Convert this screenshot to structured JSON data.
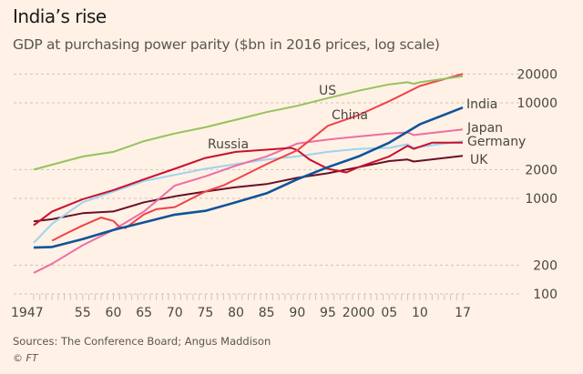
{
  "chart_data": {
    "type": "line",
    "title": "India’s rise",
    "subtitle": "GDP at purchasing power parity ($bn in 2016 prices, log scale)",
    "y_scale": "log",
    "ylim": [
      100,
      20000
    ],
    "y_ticks": [
      100,
      200,
      1000,
      2000,
      10000,
      20000
    ],
    "y_tick_labels": [
      "100",
      "200",
      "1000",
      "2000",
      "10000",
      "20000"
    ],
    "xlim": [
      1947,
      2017
    ],
    "x_ticks": [
      1947,
      1955,
      1960,
      1965,
      1970,
      1975,
      1980,
      1985,
      1990,
      1995,
      2000,
      2005,
      2010,
      2017
    ],
    "x_tick_labels": [
      "1947",
      "55",
      "60",
      "65",
      "70",
      "75",
      "80",
      "85",
      "90",
      "95",
      "2000",
      "05",
      "10",
      "17"
    ],
    "grid": true,
    "series": [
      {
        "name": "US",
        "color": "#96c25e",
        "x": [
          1947,
          1955,
          1960,
          1965,
          1970,
          1975,
          1980,
          1985,
          1990,
          1995,
          2000,
          2005,
          2008,
          2009,
          2010,
          2017
        ],
        "values": [
          2000,
          2740,
          3070,
          3970,
          4780,
          5540,
          6650,
          8000,
          9300,
          11200,
          13400,
          15600,
          16400,
          15800,
          16400,
          19000
        ]
      },
      {
        "name": "China",
        "color": "#f0424a",
        "x": [
          1950,
          1952,
          1955,
          1958,
          1960,
          1961,
          1962,
          1965,
          1967,
          1970,
          1975,
          1978,
          1980,
          1985,
          1990,
          1995,
          2000,
          2005,
          2010,
          2017
        ],
        "values": [
          361,
          420,
          520,
          630,
          580,
          500,
          490,
          680,
          770,
          810,
          1180,
          1370,
          1580,
          2280,
          3180,
          5750,
          7440,
          10400,
          15000,
          20100
        ]
      },
      {
        "name": "Russia",
        "color": "#c8102e",
        "x": [
          1947,
          1950,
          1955,
          1960,
          1965,
          1970,
          1975,
          1980,
          1985,
          1989,
          1990,
          1992,
          1995,
          1998,
          2000,
          2005,
          2008,
          2009,
          2012,
          2017
        ],
        "values": [
          522,
          730,
          980,
          1220,
          1580,
          2040,
          2650,
          3070,
          3230,
          3380,
          3200,
          2550,
          2040,
          1870,
          2120,
          2750,
          3550,
          3300,
          3830,
          3830
        ]
      },
      {
        "name": "India",
        "color": "#0f5499",
        "x": [
          1947,
          1950,
          1955,
          1960,
          1965,
          1970,
          1975,
          1980,
          1985,
          1990,
          1995,
          2000,
          2005,
          2010,
          2017
        ],
        "values": [
          305,
          310,
          375,
          467,
          560,
          675,
          740,
          910,
          1130,
          1580,
          2120,
          2750,
          3830,
          5960,
          8930
        ]
      },
      {
        "name": "Japan",
        "color": "#ee6ea3",
        "x": [
          1947,
          1950,
          1955,
          1960,
          1965,
          1970,
          1975,
          1980,
          1985,
          1990,
          1995,
          2000,
          2005,
          2008,
          2009,
          2017
        ],
        "values": [
          166,
          207,
          323,
          467,
          730,
          1360,
          1700,
          2200,
          2750,
          3740,
          4120,
          4440,
          4780,
          4900,
          4600,
          5270
        ]
      },
      {
        "name": "Germany",
        "color": "#9dd4ef",
        "x": [
          1947,
          1950,
          1955,
          1960,
          1965,
          1970,
          1975,
          1980,
          1985,
          1990,
          1995,
          2000,
          2005,
          2008,
          2009,
          2017
        ],
        "values": [
          343,
          542,
          910,
          1180,
          1520,
          1760,
          2040,
          2280,
          2550,
          2750,
          3070,
          3300,
          3380,
          3690,
          3400,
          3970
        ]
      },
      {
        "name": "UK",
        "color": "#6b0f28",
        "x": [
          1947,
          1950,
          1955,
          1960,
          1965,
          1970,
          1975,
          1980,
          1985,
          1990,
          1995,
          2000,
          2005,
          2008,
          2009,
          2017
        ],
        "values": [
          575,
          605,
          700,
          730,
          910,
          1050,
          1180,
          1310,
          1410,
          1640,
          1830,
          2120,
          2460,
          2550,
          2430,
          2790
        ]
      }
    ],
    "source": "Sources: The Conference Board; Angus Maddison",
    "credit": "© FT"
  }
}
